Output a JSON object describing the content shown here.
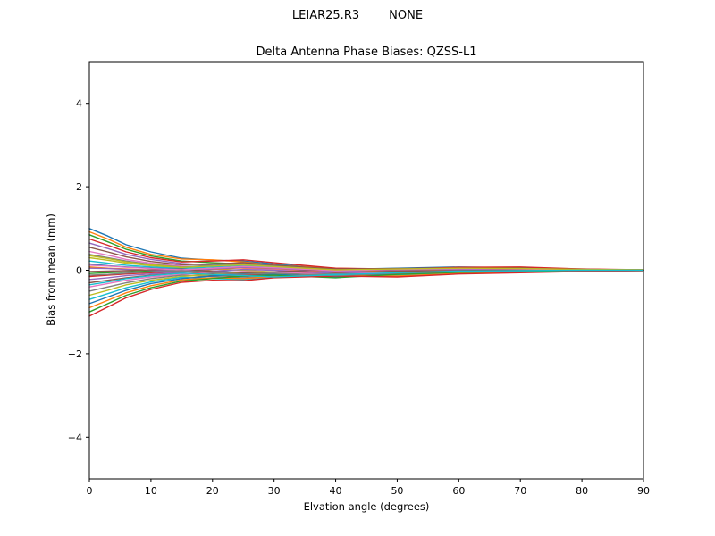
{
  "chart_data": {
    "type": "line",
    "suptitle": "LEIAR25.R3        NONE",
    "title": "Delta Antenna Phase Biases: QZSS-L1",
    "xlabel": "Elvation angle (degrees)",
    "ylabel": "Bias from mean (mm)",
    "xlim": [
      0,
      90
    ],
    "ylim": [
      -5,
      5
    ],
    "x_ticks": [
      0,
      10,
      20,
      30,
      40,
      50,
      60,
      70,
      80,
      90
    ],
    "y_ticks": [
      -4,
      -2,
      0,
      2,
      4
    ],
    "grid": false,
    "legend": "none",
    "x": [
      0,
      3,
      6,
      10,
      15,
      20,
      25,
      30,
      40,
      50,
      60,
      70,
      80,
      90
    ],
    "series": [
      {
        "color": "#1f77b4",
        "values": [
          1.0,
          0.82,
          0.61,
          0.44,
          0.29,
          0.24,
          0.22,
          0.15,
          0.02,
          0.05,
          0.08,
          0.06,
          0.02,
          0.01
        ]
      },
      {
        "color": "#ff7f0e",
        "values": [
          0.92,
          0.75,
          0.55,
          0.38,
          0.27,
          0.25,
          0.2,
          0.12,
          0.05,
          0.02,
          0.06,
          0.04,
          0.03,
          0.0
        ]
      },
      {
        "color": "#2ca02c",
        "values": [
          0.85,
          0.68,
          0.5,
          0.34,
          0.22,
          0.18,
          0.15,
          0.1,
          -0.03,
          0.01,
          0.04,
          0.05,
          0.02,
          0.01
        ]
      },
      {
        "color": "#d62728",
        "values": [
          0.75,
          0.6,
          0.44,
          0.3,
          0.2,
          0.22,
          0.25,
          0.18,
          0.05,
          0.03,
          0.07,
          0.08,
          0.03,
          0.01
        ]
      },
      {
        "color": "#9467bd",
        "values": [
          0.65,
          0.52,
          0.38,
          0.26,
          0.16,
          0.12,
          0.1,
          0.06,
          -0.05,
          -0.02,
          0.02,
          0.01,
          0.01,
          0.0
        ]
      },
      {
        "color": "#8c564b",
        "values": [
          0.55,
          0.44,
          0.32,
          0.21,
          0.13,
          0.15,
          0.18,
          0.12,
          0.03,
          0.04,
          0.05,
          0.03,
          0.02,
          0.0
        ]
      },
      {
        "color": "#e377c2",
        "values": [
          0.45,
          0.36,
          0.26,
          0.17,
          0.1,
          0.08,
          0.05,
          0.02,
          -0.06,
          -0.03,
          0.0,
          0.02,
          0.01,
          0.0
        ]
      },
      {
        "color": "#7f7f7f",
        "values": [
          0.38,
          0.3,
          0.22,
          0.14,
          0.08,
          0.12,
          0.15,
          0.1,
          0.0,
          0.02,
          0.03,
          0.04,
          0.02,
          0.01
        ]
      },
      {
        "color": "#bcbd22",
        "values": [
          0.3,
          0.24,
          0.17,
          0.11,
          0.06,
          0.03,
          0.0,
          -0.04,
          -0.08,
          -0.04,
          -0.01,
          0.0,
          0.0,
          0.0
        ]
      },
      {
        "color": "#17becf",
        "values": [
          0.22,
          0.17,
          0.12,
          0.08,
          0.04,
          0.08,
          0.12,
          0.08,
          -0.02,
          0.01,
          0.02,
          0.03,
          0.01,
          0.0
        ]
      },
      {
        "color": "#1f77b4",
        "values": [
          0.15,
          0.11,
          0.08,
          0.05,
          0.02,
          -0.02,
          -0.05,
          -0.08,
          -0.1,
          -0.05,
          -0.02,
          -0.01,
          0.0,
          0.0
        ]
      },
      {
        "color": "#ff7f0e",
        "values": [
          0.08,
          0.05,
          0.03,
          0.0,
          -0.03,
          0.02,
          0.06,
          0.04,
          -0.04,
          0.0,
          0.01,
          0.02,
          0.01,
          0.0
        ]
      },
      {
        "color": "#2ca02c",
        "values": [
          -0.08,
          -0.06,
          -0.04,
          -0.02,
          0.0,
          -0.05,
          -0.09,
          -0.1,
          -0.12,
          -0.06,
          -0.03,
          -0.02,
          -0.01,
          0.0
        ]
      },
      {
        "color": "#d62728",
        "values": [
          -0.15,
          -0.12,
          -0.09,
          -0.06,
          -0.03,
          -0.08,
          -0.12,
          -0.09,
          -0.05,
          -0.08,
          -0.05,
          -0.03,
          -0.01,
          0.0
        ]
      },
      {
        "color": "#9467bd",
        "values": [
          -0.22,
          -0.18,
          -0.13,
          -0.09,
          -0.05,
          -0.02,
          0.02,
          0.0,
          -0.08,
          -0.03,
          0.0,
          0.01,
          0.0,
          0.0
        ]
      },
      {
        "color": "#8c564b",
        "values": [
          -0.3,
          -0.24,
          -0.18,
          -0.12,
          -0.07,
          -0.12,
          -0.15,
          -0.12,
          -0.15,
          -0.08,
          -0.04,
          -0.02,
          -0.01,
          0.0
        ]
      },
      {
        "color": "#e377c2",
        "values": [
          -0.4,
          -0.32,
          -0.24,
          -0.16,
          -0.1,
          -0.06,
          -0.03,
          -0.05,
          -0.1,
          -0.05,
          -0.02,
          0.0,
          0.0,
          0.0
        ]
      },
      {
        "color": "#7f7f7f",
        "values": [
          -0.5,
          -0.4,
          -0.3,
          -0.2,
          -0.12,
          -0.15,
          -0.18,
          -0.14,
          -0.08,
          -0.1,
          -0.06,
          -0.04,
          -0.02,
          0.0
        ]
      },
      {
        "color": "#bcbd22",
        "values": [
          -0.6,
          -0.48,
          -0.35,
          -0.24,
          -0.15,
          -0.1,
          -0.06,
          -0.08,
          -0.13,
          -0.07,
          -0.03,
          -0.01,
          0.0,
          0.0
        ]
      },
      {
        "color": "#17becf",
        "values": [
          -0.7,
          -0.56,
          -0.42,
          -0.28,
          -0.17,
          -0.2,
          -0.22,
          -0.16,
          -0.1,
          -0.12,
          -0.07,
          -0.05,
          -0.02,
          -0.01
        ]
      },
      {
        "color": "#1f77b4",
        "values": [
          -0.8,
          -0.64,
          -0.48,
          -0.32,
          -0.2,
          -0.14,
          -0.08,
          -0.1,
          -0.16,
          -0.08,
          -0.04,
          -0.02,
          -0.01,
          0.0
        ]
      },
      {
        "color": "#ff7f0e",
        "values": [
          -0.9,
          -0.72,
          -0.54,
          -0.37,
          -0.23,
          -0.18,
          -0.2,
          -0.15,
          -0.12,
          -0.14,
          -0.08,
          -0.05,
          -0.02,
          -0.01
        ]
      },
      {
        "color": "#2ca02c",
        "values": [
          -1.0,
          -0.8,
          -0.6,
          -0.42,
          -0.26,
          -0.2,
          -0.14,
          -0.12,
          -0.18,
          -0.1,
          -0.05,
          -0.03,
          -0.01,
          0.0
        ]
      },
      {
        "color": "#d62728",
        "values": [
          -1.1,
          -0.88,
          -0.66,
          -0.46,
          -0.29,
          -0.24,
          -0.25,
          -0.18,
          -0.14,
          -0.16,
          -0.09,
          -0.06,
          -0.03,
          -0.01
        ]
      },
      {
        "color": "#9467bd",
        "values": [
          0.05,
          0.04,
          0.02,
          0.0,
          -0.02,
          0.03,
          0.07,
          0.05,
          -0.03,
          0.01,
          0.03,
          0.02,
          0.01,
          0.0
        ]
      },
      {
        "color": "#8c564b",
        "values": [
          -0.03,
          -0.02,
          -0.01,
          0.01,
          0.03,
          -0.03,
          -0.06,
          -0.04,
          0.02,
          -0.02,
          -0.01,
          0.01,
          0.0,
          0.0
        ]
      },
      {
        "color": "#e377c2",
        "values": [
          0.12,
          0.1,
          0.07,
          0.04,
          0.01,
          0.05,
          0.09,
          0.06,
          -0.01,
          0.02,
          0.04,
          0.03,
          0.01,
          0.0
        ]
      },
      {
        "color": "#7f7f7f",
        "values": [
          -0.12,
          -0.1,
          -0.07,
          -0.04,
          -0.01,
          -0.06,
          -0.1,
          -0.07,
          -0.13,
          -0.07,
          -0.03,
          -0.01,
          0.0,
          0.0
        ]
      },
      {
        "color": "#bcbd22",
        "values": [
          0.35,
          0.28,
          0.2,
          0.13,
          0.07,
          0.1,
          0.13,
          0.09,
          0.01,
          0.03,
          0.05,
          0.04,
          0.02,
          0.01
        ]
      },
      {
        "color": "#17becf",
        "values": [
          -0.35,
          -0.28,
          -0.2,
          -0.13,
          -0.07,
          -0.1,
          -0.13,
          -0.16,
          -0.11,
          -0.06,
          -0.02,
          -0.01,
          0.0,
          0.0
        ]
      }
    ],
    "colors": {
      "spine": "#000000",
      "background": "#ffffff",
      "text": "#000000"
    }
  }
}
